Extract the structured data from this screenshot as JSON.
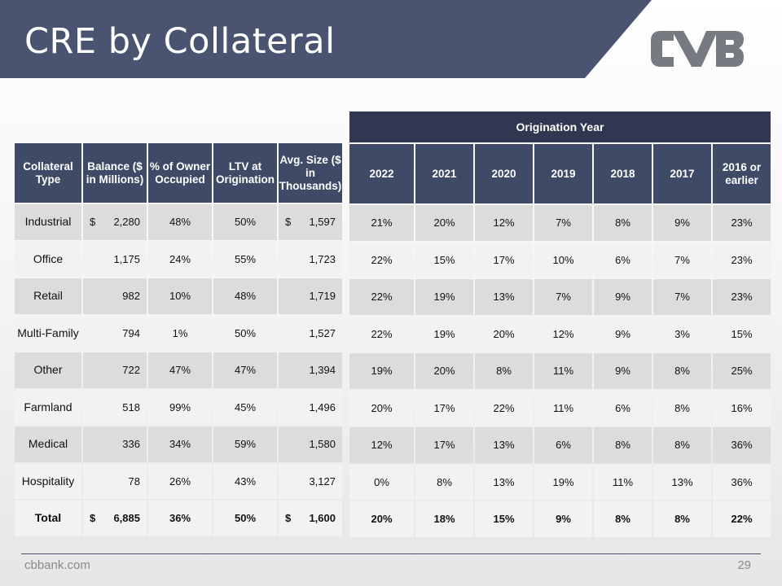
{
  "slide": {
    "title": "CRE by Collateral",
    "footer_url": "cbbank.com",
    "page_number": "29",
    "brand_color": "#4a5470",
    "logo_icon": "cvb-logo-icon"
  },
  "left_table": {
    "headers": [
      "Collateral Type",
      "Balance ($ in Millions)",
      "% of Owner Occupied",
      "LTV at Origination",
      "Avg. Size ($ in Thousands)"
    ],
    "rows": [
      {
        "type": "Industrial",
        "cur1": "$",
        "balance": "2,280",
        "owner": "48%",
        "ltv": "50%",
        "cur2": "$",
        "avg": "1,597"
      },
      {
        "type": "Office",
        "cur1": "",
        "balance": "1,175",
        "owner": "24%",
        "ltv": "55%",
        "cur2": "",
        "avg": "1,723"
      },
      {
        "type": "Retail",
        "cur1": "",
        "balance": "982",
        "owner": "10%",
        "ltv": "48%",
        "cur2": "",
        "avg": "1,719"
      },
      {
        "type": "Multi-Family",
        "cur1": "",
        "balance": "794",
        "owner": "1%",
        "ltv": "50%",
        "cur2": "",
        "avg": "1,527"
      },
      {
        "type": "Other",
        "cur1": "",
        "balance": "722",
        "owner": "47%",
        "ltv": "47%",
        "cur2": "",
        "avg": "1,394"
      },
      {
        "type": "Farmland",
        "cur1": "",
        "balance": "518",
        "owner": "99%",
        "ltv": "45%",
        "cur2": "",
        "avg": "1,496"
      },
      {
        "type": "Medical",
        "cur1": "",
        "balance": "336",
        "owner": "34%",
        "ltv": "59%",
        "cur2": "",
        "avg": "1,580"
      },
      {
        "type": "Hospitality",
        "cur1": "",
        "balance": "78",
        "owner": "26%",
        "ltv": "43%",
        "cur2": "",
        "avg": "3,127"
      },
      {
        "type": "Total",
        "cur1": "$",
        "balance": "6,885",
        "owner": "36%",
        "ltv": "50%",
        "cur2": "$",
        "avg": "1,600"
      }
    ]
  },
  "right_table": {
    "group_header": "Origination Year",
    "headers": [
      "2022",
      "2021",
      "2020",
      "2019",
      "2018",
      "2017",
      "2016 or earlier"
    ],
    "rows": [
      [
        "21%",
        "20%",
        "12%",
        "7%",
        "8%",
        "9%",
        "23%"
      ],
      [
        "22%",
        "15%",
        "17%",
        "10%",
        "6%",
        "7%",
        "23%"
      ],
      [
        "22%",
        "19%",
        "13%",
        "7%",
        "9%",
        "7%",
        "23%"
      ],
      [
        "22%",
        "19%",
        "20%",
        "12%",
        "9%",
        "3%",
        "15%"
      ],
      [
        "19%",
        "20%",
        "8%",
        "11%",
        "9%",
        "8%",
        "25%"
      ],
      [
        "20%",
        "17%",
        "22%",
        "11%",
        "6%",
        "8%",
        "16%"
      ],
      [
        "12%",
        "17%",
        "13%",
        "6%",
        "8%",
        "8%",
        "36%"
      ],
      [
        "0%",
        "8%",
        "13%",
        "19%",
        "11%",
        "13%",
        "36%"
      ],
      [
        "20%",
        "18%",
        "15%",
        "9%",
        "8%",
        "8%",
        "22%"
      ]
    ]
  }
}
